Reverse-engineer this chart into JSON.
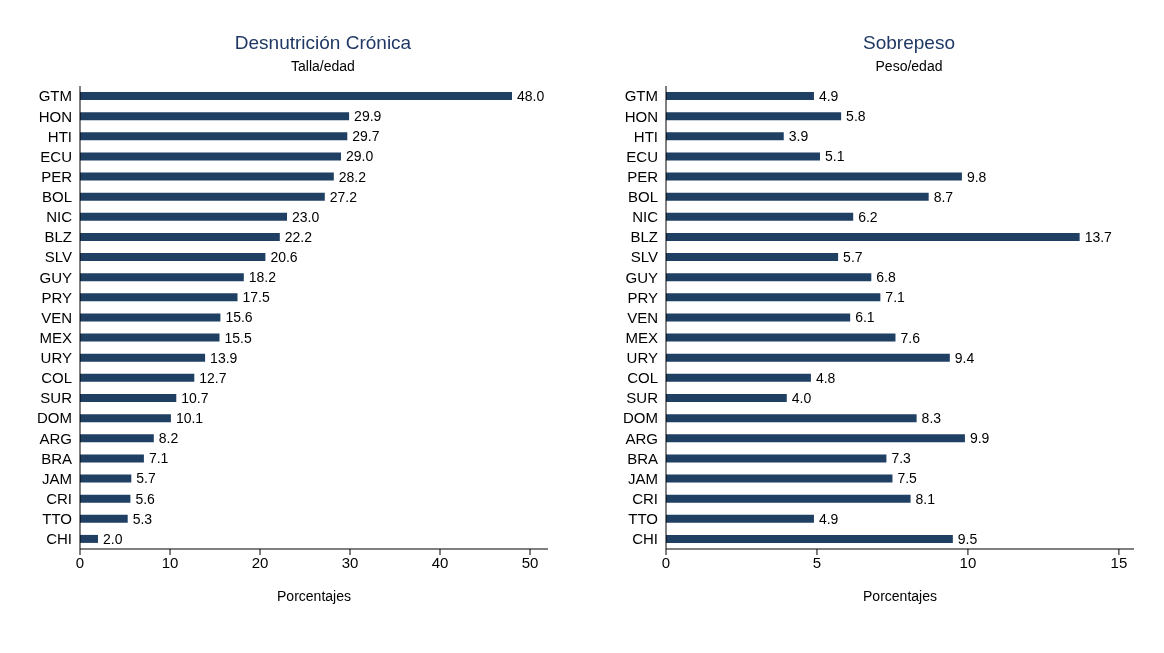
{
  "chart_data": [
    {
      "type": "bar",
      "orientation": "horizontal",
      "title": "Desnutrición Crónica",
      "subtitle": "Talla/edad",
      "xlabel": "Porcentajes",
      "categories": [
        "GTM",
        "HON",
        "HTI",
        "ECU",
        "PER",
        "BOL",
        "NIC",
        "BLZ",
        "SLV",
        "GUY",
        "PRY",
        "VEN",
        "MEX",
        "URY",
        "COL",
        "SUR",
        "DOM",
        "ARG",
        "BRA",
        "JAM",
        "CRI",
        "TTO",
        "CHI"
      ],
      "values": [
        48.0,
        29.9,
        29.7,
        29.0,
        28.2,
        27.2,
        23.0,
        22.2,
        20.6,
        18.2,
        17.5,
        15.6,
        15.5,
        13.9,
        12.7,
        10.7,
        10.1,
        8.2,
        7.1,
        5.7,
        5.6,
        5.3,
        2.0
      ],
      "value_labels": [
        "48.0",
        "29.9",
        "29.7",
        "29.0",
        "28.2",
        "27.2",
        "23.0",
        "22.2",
        "20.6",
        "18.2",
        "17.5",
        "15.6",
        "15.5",
        "13.9",
        "12.7",
        "10.7",
        "10.1",
        "8.2",
        "7.1",
        "5.7",
        "5.6",
        "5.3",
        "2.0"
      ],
      "color": "#1f3f63",
      "xlim": [
        0,
        52
      ],
      "xticks": [
        0,
        10,
        20,
        30,
        40,
        50
      ],
      "grid": false,
      "legend": false
    },
    {
      "type": "bar",
      "orientation": "horizontal",
      "title": "Sobrepeso",
      "subtitle": "Peso/edad",
      "xlabel": "Porcentajes",
      "categories": [
        "GTM",
        "HON",
        "HTI",
        "ECU",
        "PER",
        "BOL",
        "NIC",
        "BLZ",
        "SLV",
        "GUY",
        "PRY",
        "VEN",
        "MEX",
        "URY",
        "COL",
        "SUR",
        "DOM",
        "ARG",
        "BRA",
        "JAM",
        "CRI",
        "TTO",
        "CHI"
      ],
      "values": [
        4.9,
        5.8,
        3.9,
        5.1,
        9.8,
        8.7,
        6.2,
        13.7,
        5.7,
        6.8,
        7.1,
        6.1,
        7.6,
        9.4,
        4.8,
        4.0,
        8.3,
        9.9,
        7.3,
        7.5,
        8.1,
        4.9,
        9.5
      ],
      "value_labels": [
        "4.9",
        "5.8",
        "3.9",
        "5.1",
        "9.8",
        "8.7",
        "6.2",
        "13.7",
        "5.7",
        "6.8",
        "7.1",
        "6.1",
        "7.6",
        "9.4",
        "4.8",
        "4.0",
        "8.3",
        "9.9",
        "7.3",
        "7.5",
        "8.1",
        "4.9",
        "9.5"
      ],
      "color": "#1f3f63",
      "xlim": [
        0,
        15.5
      ],
      "xticks": [
        0,
        5,
        10,
        15
      ],
      "grid": false,
      "legend": false
    }
  ]
}
